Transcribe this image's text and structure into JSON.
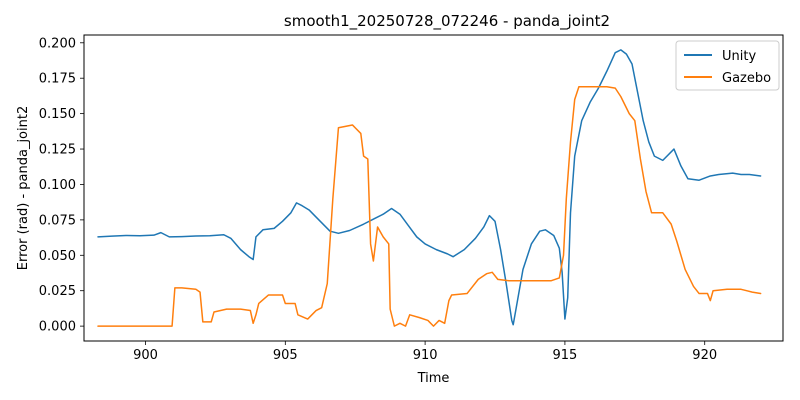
{
  "chart_data": {
    "type": "line",
    "title": "smooth1_20250728_072246 - panda_joint2",
    "xlabel": "Time",
    "ylabel": "Error (rad) - panda_joint2",
    "xlim": [
      897.8,
      922.8
    ],
    "ylim": [
      -0.0105,
      0.2055
    ],
    "xticks": [
      900,
      905,
      910,
      915,
      920
    ],
    "xtick_labels": [
      "900",
      "905",
      "910",
      "915",
      "920"
    ],
    "yticks": [
      0.0,
      0.025,
      0.05,
      0.075,
      0.1,
      0.125,
      0.15,
      0.175,
      0.2
    ],
    "ytick_labels": [
      "0.000",
      "0.025",
      "0.050",
      "0.075",
      "0.100",
      "0.125",
      "0.150",
      "0.175",
      "0.200"
    ],
    "grid": false,
    "legend": {
      "position": "top-right"
    },
    "series": [
      {
        "name": "Unity",
        "color": "#1f77b4",
        "points": [
          [
            898.3,
            0.063
          ],
          [
            898.8,
            0.0635
          ],
          [
            899.3,
            0.064
          ],
          [
            899.8,
            0.0638
          ],
          [
            900.3,
            0.0642
          ],
          [
            900.55,
            0.066
          ],
          [
            900.85,
            0.063
          ],
          [
            901.3,
            0.0632
          ],
          [
            901.8,
            0.0636
          ],
          [
            902.3,
            0.0638
          ],
          [
            902.8,
            0.0645
          ],
          [
            903.05,
            0.062
          ],
          [
            903.4,
            0.054
          ],
          [
            903.7,
            0.049
          ],
          [
            903.85,
            0.047
          ],
          [
            903.95,
            0.063
          ],
          [
            904.2,
            0.068
          ],
          [
            904.6,
            0.069
          ],
          [
            904.9,
            0.074
          ],
          [
            905.2,
            0.08
          ],
          [
            905.4,
            0.087
          ],
          [
            905.6,
            0.085
          ],
          [
            905.85,
            0.082
          ],
          [
            906.1,
            0.077
          ],
          [
            906.4,
            0.071
          ],
          [
            906.6,
            0.067
          ],
          [
            906.9,
            0.0655
          ],
          [
            907.3,
            0.0675
          ],
          [
            907.8,
            0.072
          ],
          [
            908.2,
            0.076
          ],
          [
            908.5,
            0.079
          ],
          [
            908.8,
            0.083
          ],
          [
            909.1,
            0.079
          ],
          [
            909.4,
            0.071
          ],
          [
            909.7,
            0.063
          ],
          [
            910.0,
            0.058
          ],
          [
            910.4,
            0.054
          ],
          [
            910.8,
            0.051
          ],
          [
            911.0,
            0.049
          ],
          [
            911.4,
            0.054
          ],
          [
            911.8,
            0.062
          ],
          [
            912.1,
            0.07
          ],
          [
            912.3,
            0.078
          ],
          [
            912.5,
            0.074
          ],
          [
            912.7,
            0.054
          ],
          [
            912.9,
            0.03
          ],
          [
            913.1,
            0.004
          ],
          [
            913.15,
            0.001
          ],
          [
            913.25,
            0.012
          ],
          [
            913.5,
            0.04
          ],
          [
            913.8,
            0.058
          ],
          [
            914.1,
            0.067
          ],
          [
            914.3,
            0.068
          ],
          [
            914.6,
            0.064
          ],
          [
            914.8,
            0.055
          ],
          [
            914.9,
            0.038
          ],
          [
            915.0,
            0.005
          ],
          [
            915.1,
            0.02
          ],
          [
            915.2,
            0.08
          ],
          [
            915.35,
            0.12
          ],
          [
            915.6,
            0.145
          ],
          [
            915.9,
            0.158
          ],
          [
            916.2,
            0.168
          ],
          [
            916.5,
            0.18
          ],
          [
            916.8,
            0.193
          ],
          [
            917.0,
            0.195
          ],
          [
            917.2,
            0.192
          ],
          [
            917.4,
            0.185
          ],
          [
            917.6,
            0.165
          ],
          [
            917.8,
            0.145
          ],
          [
            918.0,
            0.13
          ],
          [
            918.2,
            0.12
          ],
          [
            918.5,
            0.117
          ],
          [
            918.9,
            0.125
          ],
          [
            919.15,
            0.113
          ],
          [
            919.4,
            0.104
          ],
          [
            919.8,
            0.103
          ],
          [
            920.2,
            0.106
          ],
          [
            920.5,
            0.107
          ],
          [
            921.0,
            0.108
          ],
          [
            921.3,
            0.107
          ],
          [
            921.6,
            0.107
          ],
          [
            922.0,
            0.106
          ]
        ]
      },
      {
        "name": "Gazebo",
        "color": "#ff7f0e",
        "points": [
          [
            898.3,
            0.0
          ],
          [
            900.95,
            0.0
          ],
          [
            901.05,
            0.027
          ],
          [
            901.3,
            0.027
          ],
          [
            901.8,
            0.026
          ],
          [
            901.95,
            0.024
          ],
          [
            902.05,
            0.003
          ],
          [
            902.35,
            0.003
          ],
          [
            902.45,
            0.01
          ],
          [
            902.9,
            0.012
          ],
          [
            903.4,
            0.012
          ],
          [
            903.75,
            0.011
          ],
          [
            903.85,
            0.002
          ],
          [
            903.95,
            0.008
          ],
          [
            904.05,
            0.016
          ],
          [
            904.4,
            0.022
          ],
          [
            904.9,
            0.022
          ],
          [
            905.0,
            0.016
          ],
          [
            905.35,
            0.016
          ],
          [
            905.45,
            0.008
          ],
          [
            905.8,
            0.005
          ],
          [
            906.1,
            0.011
          ],
          [
            906.3,
            0.013
          ],
          [
            906.5,
            0.03
          ],
          [
            906.7,
            0.09
          ],
          [
            906.9,
            0.14
          ],
          [
            907.4,
            0.142
          ],
          [
            907.7,
            0.136
          ],
          [
            907.8,
            0.12
          ],
          [
            907.95,
            0.118
          ],
          [
            908.05,
            0.058
          ],
          [
            908.15,
            0.046
          ],
          [
            908.3,
            0.07
          ],
          [
            908.5,
            0.063
          ],
          [
            908.7,
            0.058
          ],
          [
            908.75,
            0.012
          ],
          [
            908.9,
            0.0
          ],
          [
            909.1,
            0.002
          ],
          [
            909.3,
            0.0
          ],
          [
            909.45,
            0.008
          ],
          [
            909.8,
            0.006
          ],
          [
            910.1,
            0.004
          ],
          [
            910.3,
            0.0
          ],
          [
            910.5,
            0.004
          ],
          [
            910.7,
            0.002
          ],
          [
            910.85,
            0.018
          ],
          [
            910.95,
            0.022
          ],
          [
            911.5,
            0.023
          ],
          [
            911.9,
            0.033
          ],
          [
            912.2,
            0.037
          ],
          [
            912.4,
            0.038
          ],
          [
            912.6,
            0.033
          ],
          [
            913.0,
            0.032
          ],
          [
            913.5,
            0.032
          ],
          [
            914.0,
            0.032
          ],
          [
            914.5,
            0.032
          ],
          [
            914.8,
            0.034
          ],
          [
            914.95,
            0.05
          ],
          [
            915.05,
            0.09
          ],
          [
            915.2,
            0.13
          ],
          [
            915.35,
            0.16
          ],
          [
            915.5,
            0.169
          ],
          [
            916.0,
            0.169
          ],
          [
            916.5,
            0.169
          ],
          [
            916.8,
            0.168
          ],
          [
            917.0,
            0.162
          ],
          [
            917.3,
            0.15
          ],
          [
            917.5,
            0.145
          ],
          [
            917.7,
            0.118
          ],
          [
            917.9,
            0.095
          ],
          [
            918.1,
            0.08
          ],
          [
            918.5,
            0.08
          ],
          [
            918.8,
            0.072
          ],
          [
            919.0,
            0.06
          ],
          [
            919.3,
            0.04
          ],
          [
            919.6,
            0.028
          ],
          [
            919.8,
            0.023
          ],
          [
            920.1,
            0.023
          ],
          [
            920.2,
            0.018
          ],
          [
            920.3,
            0.025
          ],
          [
            920.8,
            0.026
          ],
          [
            921.3,
            0.026
          ],
          [
            921.5,
            0.025
          ],
          [
            921.7,
            0.024
          ],
          [
            922.0,
            0.023
          ]
        ]
      }
    ]
  }
}
